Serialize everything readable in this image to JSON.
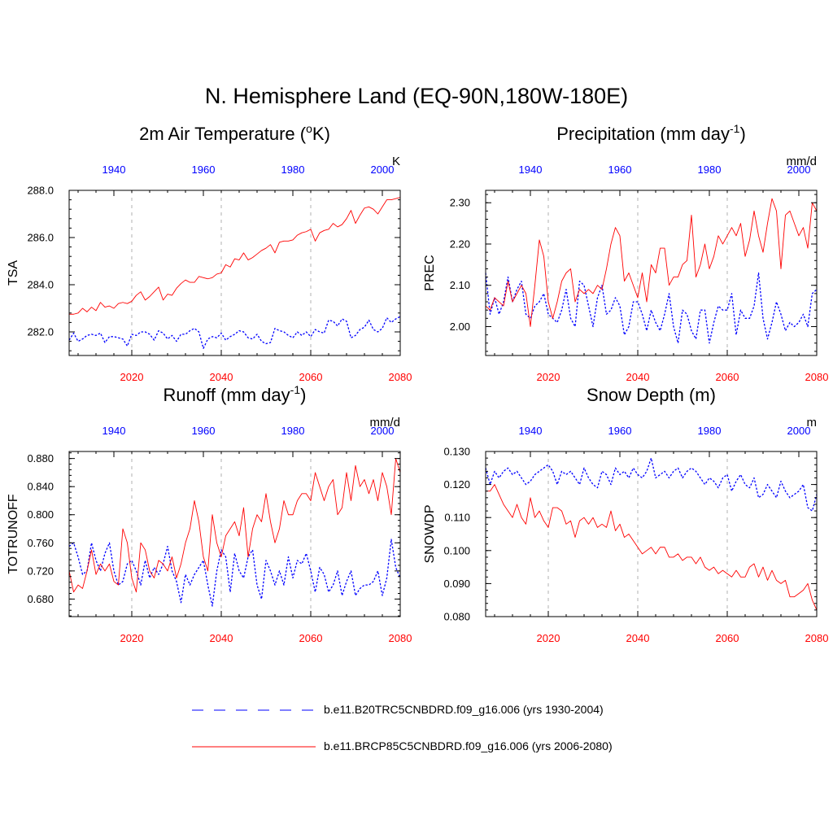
{
  "figure_title": "N. Hemisphere Land (EQ-90N,180W-180E)",
  "colors": {
    "model1": "#0000ff",
    "model2": "#ff0000",
    "grid": "#b0b0b0",
    "axis": "#000000"
  },
  "legend": {
    "placement": "bottom-center",
    "items": [
      {
        "label": "b.e11.B20TRC5CNBDRD.f09_g16.006 (yrs 1930-2004)",
        "color": "#0000ff",
        "style": "dashed"
      },
      {
        "label": "b.e11.BRCP85C5CNBDRD.f09_g16.006 (yrs 2006-2080)",
        "color": "#ff0000",
        "style": "solid"
      }
    ]
  },
  "chart_data": [
    {
      "type": "line",
      "title": "2m Air Temperature (°K)",
      "title_main": "2m Air Temperature (",
      "title_sup": "o",
      "title_tail": "K)",
      "ylabel": "TSA",
      "units": "K",
      "ylim": [
        281.0,
        288.0
      ],
      "yticks": [
        282.0,
        284.0,
        286.0,
        288.0
      ],
      "ytick_labels": [
        "282.0",
        "284.0",
        "286.0",
        "288.0"
      ],
      "xlim_bottom": [
        2006,
        2080
      ],
      "xticks_bottom": [
        2020,
        2040,
        2060,
        2080
      ],
      "xlim_top": [
        1930,
        2004
      ],
      "xticks_top": [
        1940,
        1960,
        1980,
        2000
      ],
      "series": [
        {
          "name": "b.e11.B20TRC5CNBDRD.f09_g16.006",
          "years": [
            1930,
            2004
          ],
          "style": "dashed",
          "color": "#0000ff",
          "values": [
            281.65,
            281.95,
            281.6,
            281.7,
            281.85,
            281.9,
            281.85,
            281.95,
            281.55,
            281.8,
            281.8,
            281.75,
            281.7,
            281.4,
            281.9,
            281.85,
            282.0,
            282.0,
            281.9,
            281.65,
            282.05,
            281.95,
            281.7,
            281.85,
            281.6,
            281.9,
            281.9,
            282.05,
            282.15,
            282.0,
            281.3,
            281.7,
            281.8,
            281.75,
            281.95,
            281.65,
            281.8,
            281.9,
            282.05,
            282.0,
            281.75,
            281.7,
            281.9,
            281.6,
            281.5,
            281.55,
            282.15,
            282.05,
            282.0,
            281.85,
            281.75,
            282.0,
            281.85,
            282.0,
            281.8,
            282.1,
            282.0,
            281.95,
            282.5,
            282.45,
            282.25,
            282.55,
            282.45,
            281.75,
            281.85,
            282.1,
            282.2,
            282.5,
            282.1,
            282.0,
            282.15,
            282.6,
            282.4,
            282.55,
            282.65
          ]
        },
        {
          "name": "b.e11.BRCP85C5CNBDRD.f09_g16.006",
          "years": [
            2006,
            2080
          ],
          "style": "solid",
          "color": "#ff0000",
          "values": [
            282.75,
            282.75,
            282.8,
            283.0,
            282.85,
            283.05,
            282.9,
            283.25,
            283.05,
            283.1,
            283.0,
            283.2,
            283.25,
            283.2,
            283.3,
            283.55,
            283.7,
            283.35,
            283.5,
            283.7,
            283.9,
            283.35,
            283.6,
            283.55,
            283.85,
            284.05,
            284.2,
            284.1,
            284.1,
            284.35,
            284.3,
            284.25,
            284.3,
            284.45,
            284.5,
            284.85,
            284.75,
            285.1,
            285.05,
            285.35,
            285.05,
            285.15,
            285.3,
            285.45,
            285.55,
            285.7,
            285.35,
            285.8,
            285.85,
            285.85,
            285.9,
            286.1,
            286.2,
            286.25,
            286.35,
            285.85,
            286.2,
            286.3,
            286.35,
            286.6,
            286.45,
            286.55,
            286.8,
            287.15,
            286.6,
            286.95,
            287.25,
            287.3,
            287.2,
            287.0,
            287.3,
            287.6,
            287.6,
            287.65,
            287.7
          ]
        }
      ]
    },
    {
      "type": "line",
      "title": "Precipitation (mm day-1)",
      "title_main": "Precipitation (mm day",
      "title_sup": "-1",
      "title_tail": ")",
      "ylabel": "PREC",
      "units": "mm/d",
      "ylim": [
        1.93,
        2.33
      ],
      "yticks": [
        2.0,
        2.1,
        2.2,
        2.3
      ],
      "ytick_labels": [
        "2.00",
        "2.10",
        "2.20",
        "2.30"
      ],
      "xlim_bottom": [
        2006,
        2080
      ],
      "xticks_bottom": [
        2020,
        2040,
        2060,
        2080
      ],
      "xlim_top": [
        1930,
        2004
      ],
      "xticks_top": [
        1940,
        1960,
        1980,
        2000
      ],
      "series": [
        {
          "name": "b.e11.B20TRC5CNBDRD.f09_g16.006",
          "years": [
            1930,
            2004
          ],
          "style": "dashed",
          "color": "#0000ff",
          "values": [
            2.13,
            2.03,
            2.07,
            2.03,
            2.06,
            2.12,
            2.06,
            2.09,
            2.11,
            2.03,
            2.02,
            2.05,
            2.06,
            2.08,
            2.03,
            2.02,
            2.01,
            2.04,
            2.09,
            2.02,
            2.0,
            2.11,
            2.1,
            2.05,
            2.0,
            2.07,
            2.1,
            2.03,
            2.04,
            2.07,
            2.05,
            1.98,
            2.0,
            2.06,
            2.06,
            2.03,
            1.99,
            2.04,
            2.01,
            1.99,
            2.03,
            2.08,
            2.0,
            1.96,
            2.04,
            2.03,
            1.99,
            1.97,
            2.04,
            2.04,
            1.96,
            2.01,
            2.05,
            2.04,
            2.04,
            2.08,
            1.98,
            2.04,
            2.02,
            2.02,
            2.05,
            2.13,
            2.02,
            1.97,
            2.01,
            2.06,
            2.03,
            1.99,
            2.01,
            2.0,
            2.01,
            2.03,
            2.0,
            2.08,
            2.09
          ]
        },
        {
          "name": "b.e11.BRCP85C5CNBDRD.f09_g16.006",
          "years": [
            2006,
            2080
          ],
          "style": "solid",
          "color": "#ff0000",
          "values": [
            2.05,
            2.04,
            2.07,
            2.06,
            2.05,
            2.11,
            2.06,
            2.08,
            2.1,
            2.08,
            2.0,
            2.1,
            2.21,
            2.17,
            2.06,
            2.02,
            2.06,
            2.11,
            2.13,
            2.14,
            2.06,
            2.09,
            2.08,
            2.09,
            2.08,
            2.1,
            2.09,
            2.14,
            2.2,
            2.24,
            2.22,
            2.11,
            2.13,
            2.1,
            2.07,
            2.13,
            2.06,
            2.15,
            2.13,
            2.19,
            2.19,
            2.1,
            2.12,
            2.12,
            2.15,
            2.16,
            2.27,
            2.12,
            2.15,
            2.2,
            2.14,
            2.17,
            2.22,
            2.2,
            2.22,
            2.24,
            2.22,
            2.25,
            2.17,
            2.21,
            2.28,
            2.22,
            2.18,
            2.25,
            2.31,
            2.28,
            2.14,
            2.27,
            2.28,
            2.25,
            2.22,
            2.24,
            2.19,
            2.3,
            2.28
          ]
        }
      ]
    },
    {
      "type": "line",
      "title": "Runoff (mm day-1)",
      "title_main": "Runoff (mm day",
      "title_sup": "-1",
      "title_tail": ")",
      "ylabel": "TOTRUNOFF",
      "units": "mm/d",
      "ylim": [
        0.655,
        0.89
      ],
      "yticks": [
        0.68,
        0.72,
        0.76,
        0.8,
        0.84,
        0.88
      ],
      "ytick_labels": [
        "0.680",
        "0.720",
        "0.760",
        "0.800",
        "0.840",
        "0.880"
      ],
      "xlim_bottom": [
        2006,
        2080
      ],
      "xticks_bottom": [
        2020,
        2040,
        2060,
        2080
      ],
      "xlim_top": [
        1930,
        2004
      ],
      "xticks_top": [
        1940,
        1960,
        1980,
        2000
      ],
      "series": [
        {
          "name": "b.e11.B20TRC5CNBDRD.f09_g16.006",
          "years": [
            1930,
            2004
          ],
          "style": "dashed",
          "color": "#0000ff",
          "values": [
            0.755,
            0.76,
            0.74,
            0.715,
            0.72,
            0.76,
            0.735,
            0.72,
            0.745,
            0.76,
            0.72,
            0.7,
            0.705,
            0.73,
            0.735,
            0.72,
            0.7,
            0.735,
            0.71,
            0.725,
            0.715,
            0.73,
            0.755,
            0.72,
            0.705,
            0.675,
            0.715,
            0.7,
            0.715,
            0.725,
            0.735,
            0.7,
            0.67,
            0.72,
            0.75,
            0.74,
            0.69,
            0.745,
            0.72,
            0.71,
            0.74,
            0.75,
            0.7,
            0.68,
            0.735,
            0.72,
            0.7,
            0.72,
            0.7,
            0.74,
            0.71,
            0.735,
            0.73,
            0.745,
            0.72,
            0.69,
            0.725,
            0.715,
            0.69,
            0.7,
            0.72,
            0.685,
            0.705,
            0.72,
            0.685,
            0.695,
            0.7,
            0.7,
            0.705,
            0.72,
            0.685,
            0.71,
            0.765,
            0.725,
            0.71
          ]
        },
        {
          "name": "b.e11.BRCP85C5CNBDRD.f09_g16.006",
          "years": [
            2006,
            2080
          ],
          "style": "solid",
          "color": "#ff0000",
          "values": [
            0.72,
            0.69,
            0.7,
            0.695,
            0.72,
            0.75,
            0.715,
            0.73,
            0.72,
            0.73,
            0.705,
            0.7,
            0.78,
            0.76,
            0.71,
            0.69,
            0.76,
            0.75,
            0.72,
            0.71,
            0.735,
            0.73,
            0.72,
            0.74,
            0.71,
            0.73,
            0.76,
            0.78,
            0.82,
            0.79,
            0.74,
            0.72,
            0.8,
            0.76,
            0.74,
            0.77,
            0.78,
            0.79,
            0.77,
            0.81,
            0.74,
            0.78,
            0.8,
            0.79,
            0.83,
            0.79,
            0.76,
            0.78,
            0.82,
            0.8,
            0.8,
            0.82,
            0.83,
            0.83,
            0.82,
            0.86,
            0.84,
            0.82,
            0.84,
            0.85,
            0.8,
            0.81,
            0.86,
            0.82,
            0.87,
            0.84,
            0.85,
            0.83,
            0.85,
            0.82,
            0.86,
            0.84,
            0.8,
            0.88,
            0.86
          ]
        }
      ]
    },
    {
      "type": "line",
      "title": "Snow Depth (m)",
      "title_main": "Snow Depth (m)",
      "title_sup": "",
      "title_tail": "",
      "ylabel": "SNOWDP",
      "units": "m",
      "ylim": [
        0.08,
        0.13
      ],
      "yticks": [
        0.08,
        0.09,
        0.1,
        0.11,
        0.12,
        0.13
      ],
      "ytick_labels": [
        "0.080",
        "0.090",
        "0.100",
        "0.110",
        "0.120",
        "0.130"
      ],
      "xlim_bottom": [
        2006,
        2080
      ],
      "xticks_bottom": [
        2020,
        2040,
        2060,
        2080
      ],
      "xlim_top": [
        1930,
        2004
      ],
      "xticks_top": [
        1940,
        1960,
        1980,
        2000
      ],
      "series": [
        {
          "name": "b.e11.B20TRC5CNBDRD.f09_g16.006",
          "years": [
            1930,
            2004
          ],
          "style": "dashed",
          "color": "#0000ff",
          "values": [
            0.125,
            0.12,
            0.124,
            0.122,
            0.124,
            0.125,
            0.123,
            0.124,
            0.122,
            0.12,
            0.121,
            0.123,
            0.124,
            0.125,
            0.126,
            0.124,
            0.12,
            0.124,
            0.123,
            0.124,
            0.122,
            0.12,
            0.125,
            0.122,
            0.12,
            0.119,
            0.124,
            0.123,
            0.12,
            0.125,
            0.123,
            0.124,
            0.122,
            0.125,
            0.123,
            0.122,
            0.124,
            0.128,
            0.122,
            0.123,
            0.124,
            0.122,
            0.124,
            0.125,
            0.122,
            0.124,
            0.125,
            0.124,
            0.122,
            0.12,
            0.122,
            0.121,
            0.119,
            0.122,
            0.123,
            0.118,
            0.121,
            0.123,
            0.12,
            0.119,
            0.122,
            0.116,
            0.117,
            0.12,
            0.118,
            0.116,
            0.121,
            0.118,
            0.116,
            0.117,
            0.118,
            0.12,
            0.113,
            0.112,
            0.117
          ]
        },
        {
          "name": "b.e11.BRCP85C5CNBDRD.f09_g16.006",
          "years": [
            2006,
            2080
          ],
          "style": "solid",
          "color": "#ff0000",
          "values": [
            0.118,
            0.118,
            0.12,
            0.117,
            0.114,
            0.112,
            0.11,
            0.114,
            0.11,
            0.108,
            0.116,
            0.11,
            0.112,
            0.109,
            0.107,
            0.113,
            0.113,
            0.112,
            0.108,
            0.109,
            0.104,
            0.109,
            0.11,
            0.108,
            0.11,
            0.107,
            0.108,
            0.107,
            0.112,
            0.106,
            0.108,
            0.104,
            0.105,
            0.103,
            0.101,
            0.099,
            0.1,
            0.101,
            0.099,
            0.101,
            0.101,
            0.098,
            0.098,
            0.099,
            0.097,
            0.098,
            0.098,
            0.096,
            0.098,
            0.095,
            0.094,
            0.095,
            0.093,
            0.094,
            0.093,
            0.092,
            0.094,
            0.092,
            0.092,
            0.095,
            0.096,
            0.092,
            0.095,
            0.091,
            0.094,
            0.091,
            0.09,
            0.091,
            0.086,
            0.086,
            0.087,
            0.088,
            0.09,
            0.085,
            0.082
          ]
        }
      ]
    }
  ]
}
